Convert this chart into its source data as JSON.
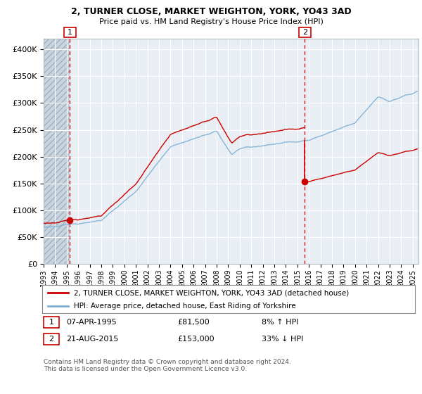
{
  "title1": "2, TURNER CLOSE, MARKET WEIGHTON, YORK, YO43 3AD",
  "title2": "Price paid vs. HM Land Registry's House Price Index (HPI)",
  "legend_line1": "2, TURNER CLOSE, MARKET WEIGHTON, YORK, YO43 3AD (detached house)",
  "legend_line2": "HPI: Average price, detached house, East Riding of Yorkshire",
  "annotation1_date": "07-APR-1995",
  "annotation1_price": "£81,500",
  "annotation1_hpi": "8% ↑ HPI",
  "annotation2_date": "21-AUG-2015",
  "annotation2_price": "£153,000",
  "annotation2_hpi": "33% ↓ HPI",
  "sale1_year": 1995.27,
  "sale1_value": 81500,
  "sale2_year": 2015.64,
  "sale2_value": 153000,
  "footnote": "Contains HM Land Registry data © Crown copyright and database right 2024.\nThis data is licensed under the Open Government Licence v3.0.",
  "red_color": "#cc0000",
  "blue_color": "#7bafd4",
  "plot_bg": "#e8eef4",
  "hatch_bg": "#c8d4de",
  "grid_color": "#ffffff",
  "ylim": [
    0,
    420000
  ],
  "ylim_max_tick": 400000,
  "xlim_start": 1993.0,
  "xlim_end": 2025.5
}
